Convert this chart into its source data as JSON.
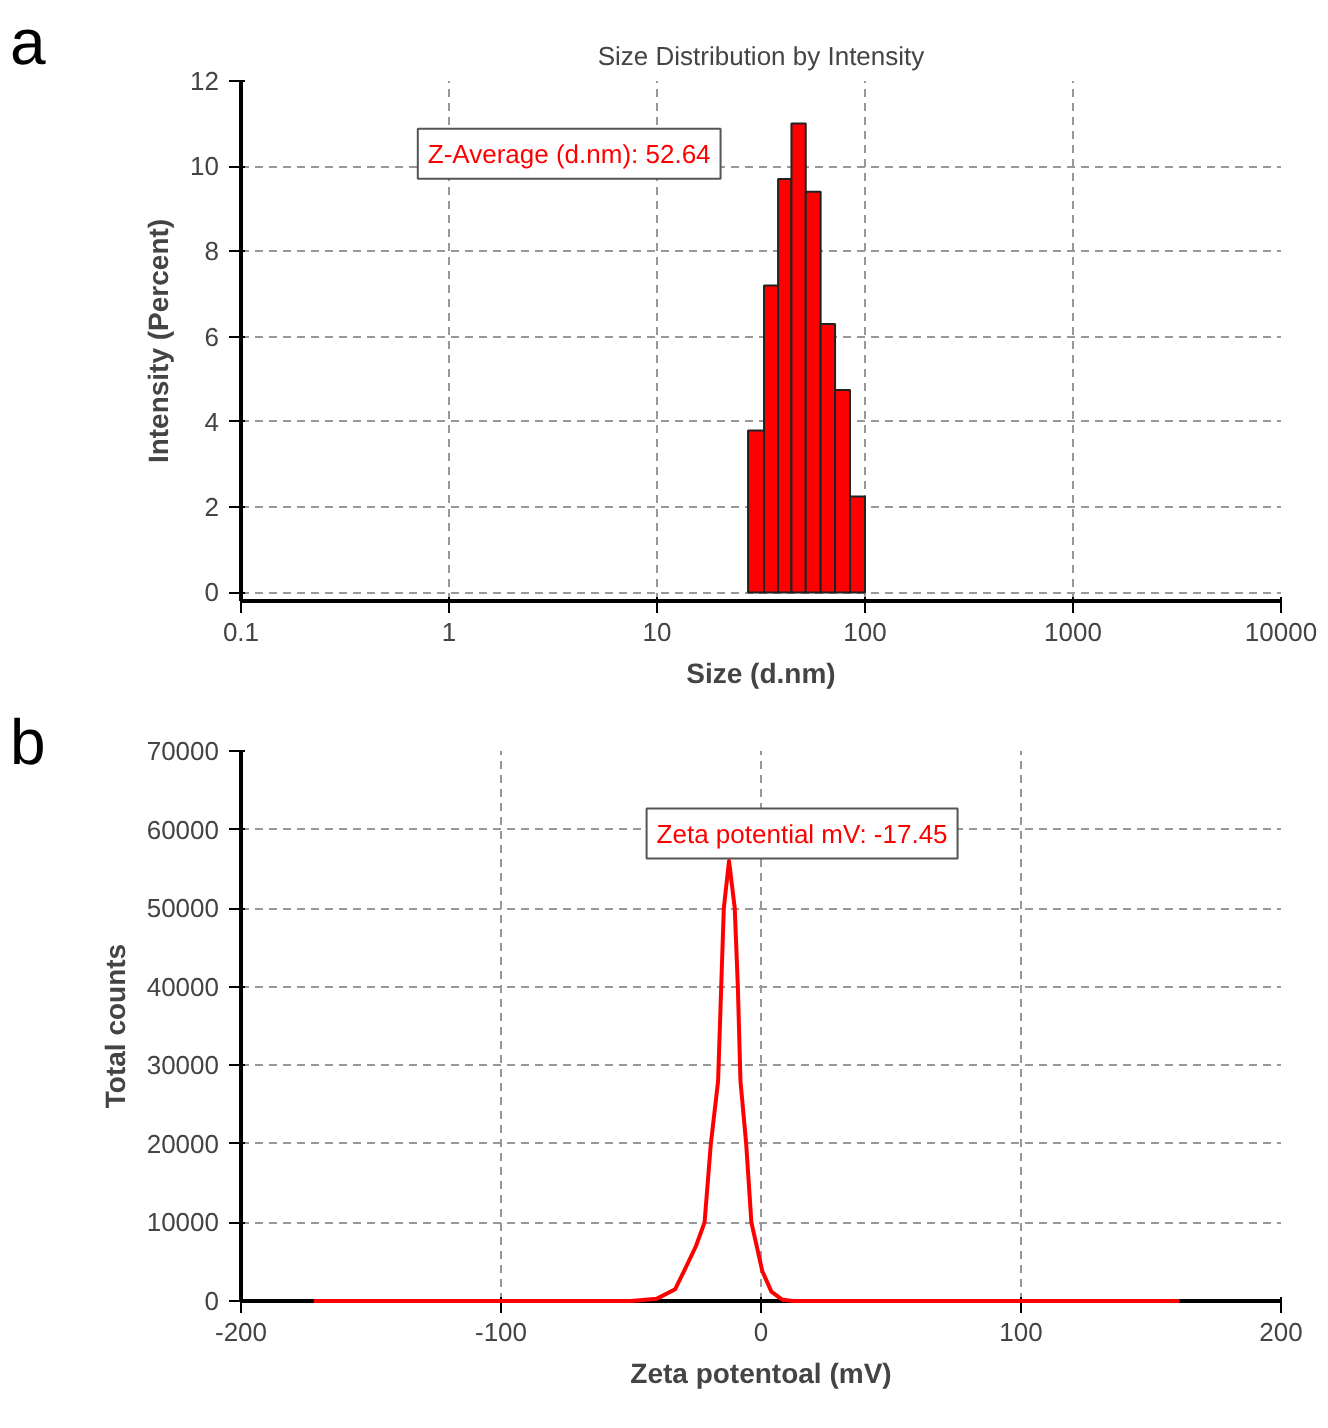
{
  "chart_data": [
    {
      "type": "histogram",
      "title": "Size Distribution by Intensity",
      "xlabel": "Size (d.nm)",
      "ylabel": "Intensity (Percent)",
      "annotations": [
        "a",
        "Z-Average (d.nm): 52.64"
      ],
      "bins": [
        27.4,
        32.7,
        38.2,
        44.3,
        51.9,
        61.2,
        71.8,
        84.7,
        100
      ],
      "values": [
        3.8,
        7.2,
        9.7,
        11.0,
        9.4,
        6.3,
        4.75,
        2.25
      ],
      "color": "#ff0000",
      "log": "x",
      "xlim": [
        0.1,
        10000
      ],
      "xticks": [
        0.1,
        1,
        10,
        100,
        1000,
        10000
      ],
      "ylim": [
        -0.2,
        12
      ],
      "yticks": [
        0,
        2,
        4,
        6,
        8,
        10,
        12
      ],
      "grid": true
    },
    {
      "type": "line",
      "xlabel": "Zeta potentoal (mV)",
      "ylabel": "Total counts",
      "annotations": [
        "b",
        "Zeta potential mV: -17.45"
      ],
      "x": [
        -172,
        -100,
        -50,
        -40,
        -33,
        -29.6,
        -25,
        -21.7,
        -19.3,
        -16.5,
        -15.3,
        -14.3,
        -12.3,
        -10.1,
        -8.9,
        -7.9,
        -5.7,
        -3.7,
        0.5,
        4,
        8,
        12,
        50,
        100,
        161
      ],
      "values": [
        0,
        0,
        0,
        300,
        1500,
        3800,
        7000,
        10000,
        20000,
        28000,
        40000,
        50000,
        56000,
        50000,
        40000,
        28000,
        20000,
        10000,
        3800,
        1200,
        200,
        0,
        0,
        0,
        0
      ],
      "color": "#ff0000",
      "xlim": [
        -200,
        200
      ],
      "xticks": [
        -200,
        -100,
        0,
        100,
        200
      ],
      "ylim": [
        0,
        70000
      ],
      "yticks": [
        0,
        10000,
        20000,
        30000,
        40000,
        50000,
        60000,
        70000
      ],
      "grid": true
    }
  ]
}
